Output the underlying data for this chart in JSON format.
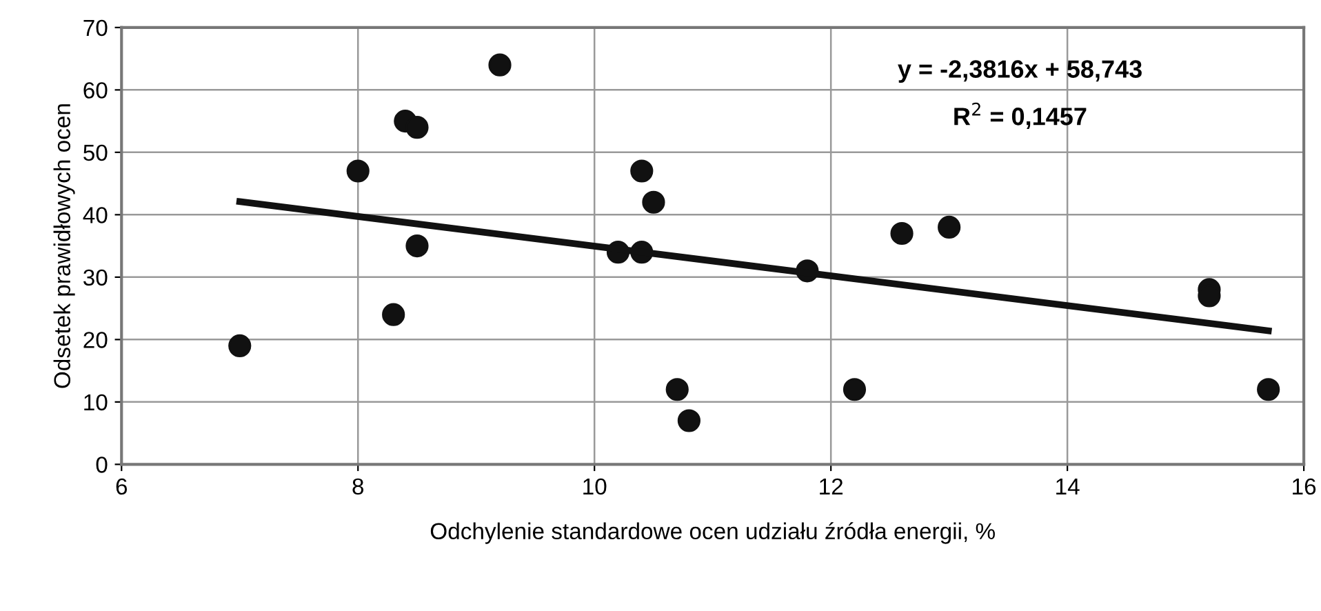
{
  "chart_data": {
    "type": "scatter",
    "xlabel": "Odchylenie standardowe ocen udziału źródła energii, %",
    "ylabel": "Odsetek prawidłowych ocen",
    "series": [
      {
        "color": "#111111",
        "marker": "circle",
        "x": [
          7.0,
          8.0,
          8.3,
          8.4,
          8.5,
          8.5,
          9.2,
          10.2,
          10.4,
          10.4,
          10.5,
          10.7,
          10.8,
          11.8,
          12.2,
          12.6,
          13.0,
          15.2,
          15.2,
          15.7
        ],
        "values": [
          19,
          47,
          24,
          55,
          54,
          35,
          64,
          34,
          47,
          34,
          42,
          12,
          7,
          31,
          12,
          37,
          38,
          28,
          27,
          12
        ]
      },
      {
        "type": "line",
        "color": "#111111",
        "marker": "none",
        "x": [
          7.0,
          15.7
        ],
        "values": [
          42.1,
          21.4
        ]
      }
    ],
    "annotations": [
      "y = -2,3816x + 58,743",
      "R$^{2}$ = 0,1457"
    ],
    "xlim": [
      6,
      16
    ],
    "xticks": [
      6,
      8,
      10,
      12,
      14,
      16
    ],
    "ylim": [
      0,
      70
    ],
    "yticks": [
      0,
      10,
      20,
      30,
      40,
      50,
      60,
      70
    ],
    "grid": true,
    "legend": false
  }
}
